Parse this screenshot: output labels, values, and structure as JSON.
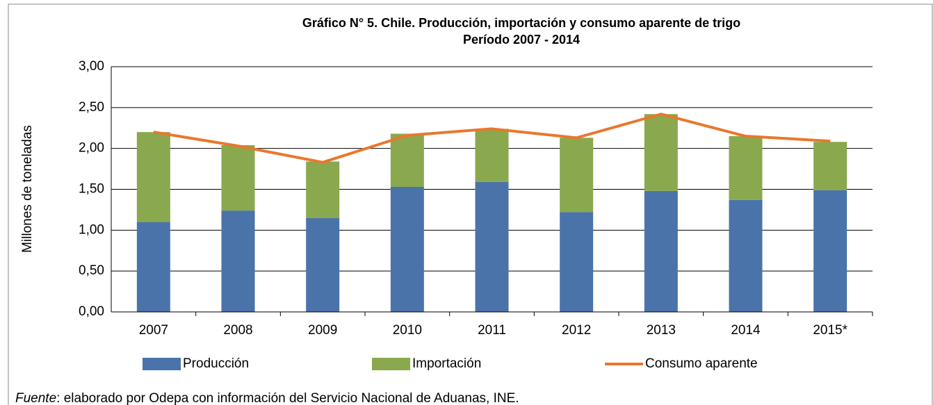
{
  "chart_data": {
    "type": "bar",
    "stacked": true,
    "title": "Gráfico N° 5. Chile. Producción, importación y consumo aparente de trigo",
    "subtitle": "Período 2007 - 2014",
    "y_label": "Millones de toneladas",
    "categories": [
      "2007",
      "2008",
      "2009",
      "2010",
      "2011",
      "2012",
      "2013",
      "2014",
      "2015*"
    ],
    "series": [
      {
        "name": "Producción",
        "type": "bar",
        "color": "#4a74a9",
        "values": [
          1.1,
          1.24,
          1.15,
          1.53,
          1.59,
          1.22,
          1.48,
          1.37,
          1.49
        ]
      },
      {
        "name": "Importación",
        "type": "bar",
        "color": "#8aa84e",
        "values": [
          1.1,
          0.8,
          0.69,
          0.65,
          0.65,
          0.91,
          0.94,
          0.78,
          0.59
        ]
      },
      {
        "name": "Consumo aparente",
        "type": "line",
        "color": "#e8782e",
        "values": [
          2.2,
          2.03,
          1.83,
          2.16,
          2.24,
          2.13,
          2.42,
          2.15,
          2.09
        ]
      }
    ],
    "ylim": [
      0,
      3
    ],
    "yticks": [
      {
        "value": 0,
        "label": "0,00"
      },
      {
        "value": 0.5,
        "label": "0,50"
      },
      {
        "value": 1,
        "label": "1,00"
      },
      {
        "value": 1.5,
        "label": "1,50"
      },
      {
        "value": 2,
        "label": "2,00"
      },
      {
        "value": 2.5,
        "label": "2,50"
      },
      {
        "value": 3,
        "label": "3,00"
      }
    ],
    "grid": true,
    "legend": "bottom",
    "note_label": "Fuente",
    "note": ": elaborado por Odepa con información del Servicio Nacional de Aduanas, INE."
  }
}
